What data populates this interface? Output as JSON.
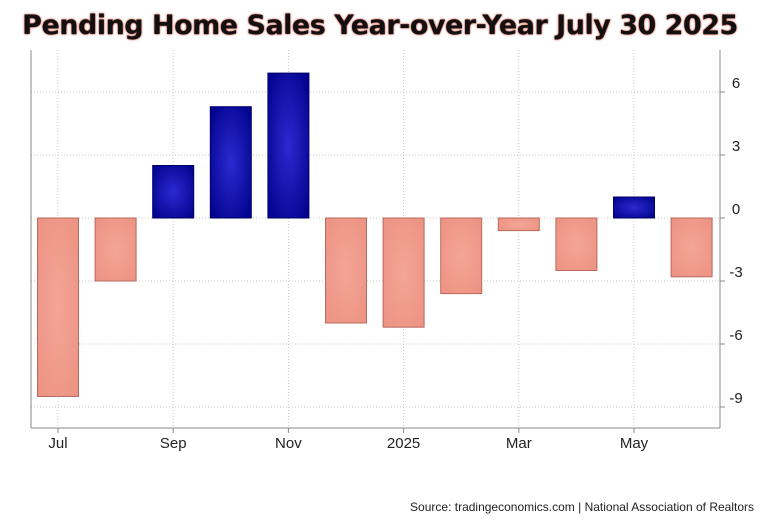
{
  "chart_data": {
    "type": "bar",
    "title": "Pending Home Sales Year-over-Year July 30 2025",
    "categories": [
      "2024-07",
      "2024-08",
      "2024-09",
      "2024-10",
      "2024-11",
      "2024-12",
      "2025-01",
      "2025-02",
      "2025-03",
      "2025-04",
      "2025-05",
      "2025-06"
    ],
    "values": [
      -8.5,
      -3.0,
      2.5,
      5.3,
      6.9,
      -5.0,
      -5.2,
      -3.6,
      -0.6,
      -2.5,
      1.0,
      -2.8
    ],
    "x_tick_labels": [
      "Jul",
      "Sep",
      "Nov",
      "2025",
      "Mar",
      "May"
    ],
    "y_ticks": [
      6,
      3,
      0,
      -3,
      -6,
      -9
    ],
    "ylim": [
      -10,
      8
    ],
    "y_axis_side": "right",
    "grid": true,
    "xlabel": "",
    "ylabel": "",
    "colors": {
      "positive": "#0a0a9a",
      "positive_edge": "#000066",
      "negative": "#f0998b",
      "negative_edge": "#b86a60",
      "grid": "#c8c8c8",
      "axis": "#888888"
    }
  },
  "source_text": "Source: tradingeconomics.com | National Association of Realtors"
}
